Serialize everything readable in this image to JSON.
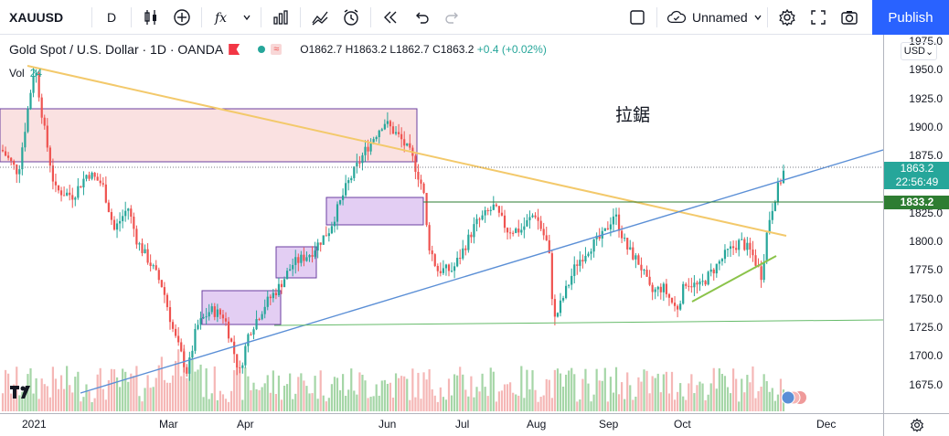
{
  "toolbar": {
    "symbol": "XAUUSD",
    "interval": "D",
    "layout_name": "Unnamed",
    "publish_label": "Publish"
  },
  "legend": {
    "title": "Gold Spot / U.S. Dollar · 1D · OANDA",
    "open": "O1862.7",
    "high": "H1863.2",
    "low": "L1862.7",
    "close": "C1863.2",
    "change": "+0.4 (+0.02%)"
  },
  "volume": {
    "label": "Vol",
    "value": "24"
  },
  "annotation": "拉鋸",
  "price_axis": {
    "currency": "USD",
    "ticks": [
      "1975.0",
      "1950.0",
      "1925.0",
      "1900.0",
      "1875.0",
      "1850.0",
      "1825.0",
      "1800.0",
      "1775.0",
      "1750.0",
      "1725.0",
      "1700.0",
      "1675.0"
    ],
    "current_price": "1863.2",
    "countdown": "22:56:49",
    "level_price": "1833.2"
  },
  "time_axis": {
    "labels": [
      "2021",
      "Mar",
      "Apr",
      "Jun",
      "Jul",
      "Aug",
      "Sep",
      "Oct",
      "Dec"
    ]
  },
  "colors": {
    "up": "#26a69a",
    "down": "#ef5350",
    "accent": "#2962ff",
    "trendline_blue": "#5b8fd6",
    "trendline_orange": "#f3c96b",
    "horizontal_green": "#2e7d32",
    "box_pink": "#f7c6c6",
    "box_purple": "#d7b8ee"
  },
  "chart_data": {
    "type": "candlestick",
    "symbol": "XAUUSD",
    "timeframe": "1D",
    "ylim": [
      1655,
      1985
    ],
    "current_price": 1863.2,
    "horizontal_level": 1833.2,
    "x_labels": [
      "2021",
      "Mar",
      "Apr",
      "Jun",
      "Jul",
      "Aug",
      "Sep",
      "Oct",
      "Dec"
    ]
  }
}
